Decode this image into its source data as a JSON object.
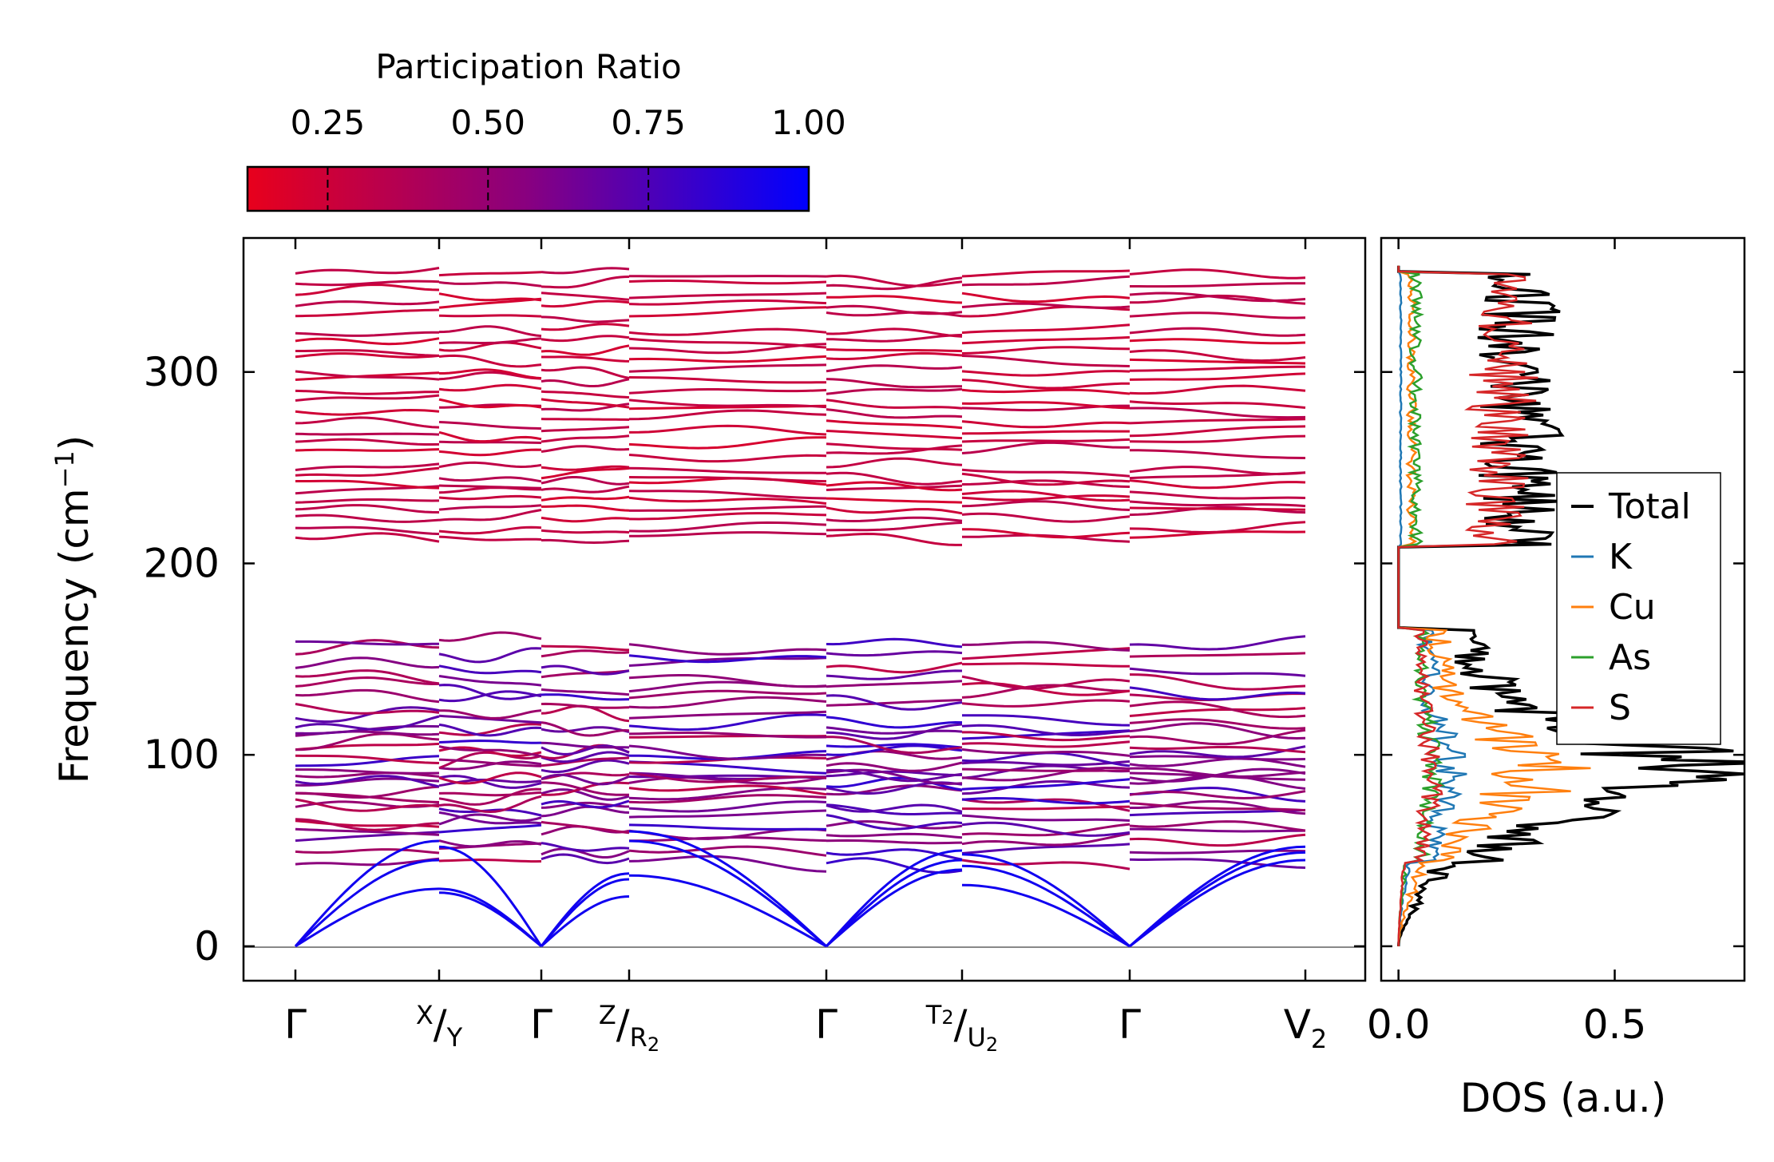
{
  "chart_data": [
    {
      "type": "line",
      "name": "phonon band structure",
      "ylabel": "Frequency (cm",
      "ylabel_sup": "−1",
      "ylabel_close": ")",
      "ylim": [
        -18,
        370
      ],
      "yticks": [
        0,
        100,
        200,
        300
      ],
      "xtick_labels": [
        {
          "main": "Γ"
        },
        {
          "pre": "X",
          "sep": "/",
          "main": "Y"
        },
        {
          "main": "Γ"
        },
        {
          "pre": "Z",
          "sep": "/",
          "main": "R",
          "sub": "2"
        },
        {
          "main": "Γ"
        },
        {
          "pre": "T",
          "presub": "2",
          "sep": "/",
          "main": "U",
          "sub": "2"
        },
        {
          "main": "Γ"
        },
        {
          "main": "V",
          "sub": "2"
        }
      ],
      "segment_xticks": [
        0,
        1,
        2,
        3,
        4,
        5,
        6,
        7
      ],
      "segments": [
        {
          "from": 0,
          "to": 1,
          "acoustic_start": [
            0,
            0,
            0
          ],
          "acoustic_end": [
            55,
            45,
            30
          ]
        },
        {
          "from": 1,
          "to": 2,
          "acoustic_start": [
            52,
            30,
            28
          ],
          "acoustic_end": [
            0,
            0,
            0
          ]
        },
        {
          "from": 2,
          "to": 3,
          "acoustic_start": [
            0,
            0,
            0
          ],
          "acoustic_end": [
            38,
            35,
            26
          ]
        },
        {
          "from": 3,
          "to": 4,
          "acoustic_start": [
            60,
            55,
            37
          ],
          "acoustic_end": [
            0,
            0,
            0
          ]
        },
        {
          "from": 4,
          "to": 5,
          "acoustic_start": [
            0,
            0,
            0
          ],
          "acoustic_end": [
            50,
            45,
            40
          ]
        },
        {
          "from": 5,
          "to": 6,
          "acoustic_start": [
            48,
            42,
            32
          ],
          "acoustic_end": [
            0,
            0,
            0
          ]
        },
        {
          "from": 6,
          "to": 7,
          "acoustic_start": [
            0,
            0,
            0
          ],
          "acoustic_end": [
            52,
            49,
            45
          ]
        }
      ],
      "high_bands": [
        213,
        218,
        224,
        229,
        233,
        237,
        242,
        246,
        249,
        258,
        263,
        268,
        274,
        280,
        285,
        290,
        296,
        300,
        307,
        311,
        316,
        321,
        330,
        335,
        340,
        346,
        351
      ],
      "low_bands": [
        44,
        50,
        55,
        60,
        64,
        68,
        72,
        75,
        78,
        81,
        84,
        87,
        89,
        92,
        95,
        98,
        101,
        104,
        108,
        112,
        116,
        120,
        125,
        130,
        135,
        140,
        146,
        152,
        158
      ],
      "colorbar": {
        "title": "Participation Ratio",
        "ticks": [
          "0.25",
          "0.50",
          "0.75",
          "1.00"
        ],
        "tick_values": [
          0.25,
          0.5,
          0.75,
          1.0
        ],
        "range": [
          0.125,
          1.0
        ],
        "color_low": "#e8001c",
        "color_mid": "#880080",
        "color_high": "#0000ff"
      }
    },
    {
      "type": "line",
      "name": "density of states",
      "xlabel": "DOS (a.u.)",
      "xlim": [
        -0.04,
        0.8
      ],
      "xticks": [
        "0.0",
        "0.5"
      ],
      "xtick_values": [
        0.0,
        0.5
      ],
      "ylim": [
        -18,
        370
      ],
      "series": [
        {
          "name": "Total",
          "color": "#000000"
        },
        {
          "name": "K",
          "color": "#1f77b4"
        },
        {
          "name": "Cu",
          "color": "#ff7f0e"
        },
        {
          "name": "As",
          "color": "#2ca02c"
        },
        {
          "name": "S",
          "color": "#d62728"
        }
      ]
    }
  ]
}
